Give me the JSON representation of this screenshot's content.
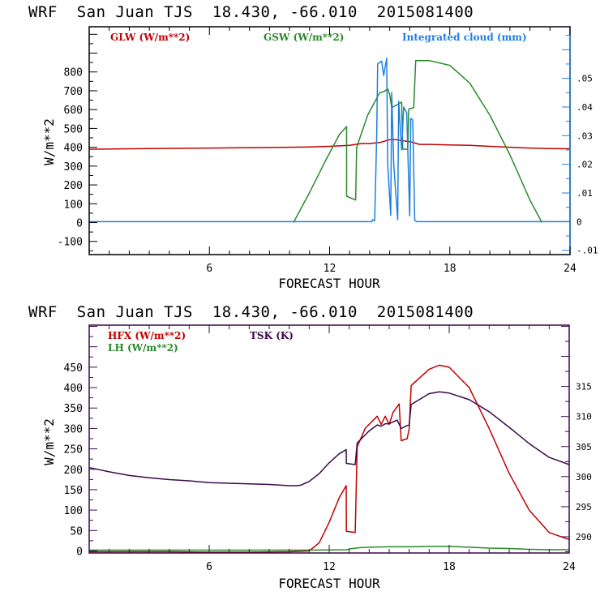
{
  "chart_data": [
    {
      "type": "line",
      "title": "WRF  San Juan TJS  18.430, -66.010  2015081400",
      "xlabel": "FORECAST HOUR",
      "ylabel": "W/m**2",
      "xlim": [
        0,
        24
      ],
      "ylim": [
        -170,
        1040
      ],
      "y2lim": [
        -0.0115,
        0.068
      ],
      "xticks": [
        6,
        12,
        18,
        24
      ],
      "yticks": [
        -100,
        0,
        100,
        200,
        300,
        400,
        500,
        600,
        700,
        800
      ],
      "ytick_labels": [
        "-100",
        "0",
        "100",
        "200",
        "300",
        "400",
        "500",
        "600",
        "700",
        "800"
      ],
      "y2ticks": [
        -0.01,
        0,
        0.01,
        0.02,
        0.03,
        0.04,
        0.05
      ],
      "y2tick_labels": [
        "-.01",
        "0",
        ".01",
        ".02",
        ".03",
        ".04",
        ".05"
      ],
      "frame_color": "#000000",
      "right_axis_color": "#1e7fe0",
      "series": [
        {
          "name": "GLW (W/m**2)",
          "axis": "left",
          "color": "#c00000",
          "x": [
            0,
            2,
            4,
            6,
            8,
            10,
            11,
            12,
            13,
            13.6,
            14,
            14.5,
            15,
            15.3,
            16,
            16.5,
            17,
            18,
            19,
            20,
            21,
            22,
            23,
            24
          ],
          "y": [
            390,
            392,
            394,
            396,
            398,
            400,
            402,
            405,
            410,
            420,
            420,
            425,
            440,
            440,
            430,
            415,
            415,
            412,
            410,
            405,
            400,
            396,
            393,
            392
          ]
        },
        {
          "name": "GSW (W/m**2)",
          "axis": "left",
          "color": "#2a8a2a",
          "x": [
            10.2,
            11,
            11.8,
            12.5,
            12.85,
            12.85,
            13.3,
            13.35,
            13.9,
            14.5,
            14.7,
            14.9,
            15,
            15.1,
            15.6,
            15.65,
            15.9,
            15.95,
            16,
            16.2,
            16.3,
            17,
            18,
            19,
            20,
            21,
            22,
            22.6
          ],
          "y": [
            0,
            160,
            330,
            470,
            510,
            140,
            120,
            400,
            570,
            690,
            695,
            710,
            680,
            610,
            640,
            390,
            390,
            600,
            605,
            610,
            860,
            860,
            835,
            740,
            570,
            360,
            120,
            0
          ]
        },
        {
          "name": "Integrated cloud (mm)",
          "axis": "right",
          "color": "#1e7fe0",
          "x": [
            0,
            14.1,
            14.15,
            14.25,
            14.35,
            14.4,
            14.6,
            14.7,
            14.85,
            14.9,
            15.05,
            15.1,
            15.2,
            15.4,
            15.45,
            15.6,
            15.7,
            15.85,
            16,
            16.05,
            16.15,
            16.25,
            16.35,
            16.5,
            24
          ],
          "y": [
            0,
            0,
            0.0007,
            0.0003,
            0.03,
            0.055,
            0.056,
            0.051,
            0.057,
            0.02,
            0.0022,
            0.045,
            0.02,
            0.0007,
            0.042,
            0.025,
            0.04,
            0.038,
            0.002,
            0.036,
            0.0355,
            0.0005,
            0,
            0,
            0
          ]
        }
      ],
      "legend": [
        "GLW (W/m**2)",
        "GSW (W/m**2)",
        "Integrated cloud (mm)"
      ],
      "legend_placement": "top"
    },
    {
      "type": "line",
      "title": "WRF  San Juan TJS  18.430, -66.010  2015081400",
      "xlabel": "FORECAST HOUR",
      "ylabel": "W/m**2",
      "xlim": [
        0,
        24
      ],
      "ylim": [
        -5,
        553
      ],
      "y2lim": [
        287.3,
        325.2
      ],
      "xticks": [
        6,
        12,
        18,
        24
      ],
      "yticks": [
        0,
        50,
        100,
        150,
        200,
        250,
        300,
        350,
        400,
        450
      ],
      "ytick_labels": [
        "0",
        "50",
        "100",
        "150",
        "200",
        "250",
        "300",
        "350",
        "400",
        "450"
      ],
      "y2ticks": [
        290,
        295,
        300,
        305,
        310,
        315
      ],
      "y2tick_labels": [
        "290",
        "295",
        "300",
        "305",
        "310",
        "315"
      ],
      "frame_color": "#3a0a4a",
      "series": [
        {
          "name": "HFX (W/m**2)",
          "axis": "left",
          "color": "#c00000",
          "x": [
            0,
            4,
            6,
            8,
            10,
            11,
            11.5,
            12,
            12.5,
            12.85,
            12.86,
            13.3,
            13.4,
            13.8,
            14.4,
            14.6,
            14.8,
            15.0,
            15.2,
            15.5,
            15.6,
            15.9,
            16,
            16.1,
            17,
            17.5,
            18,
            19,
            20,
            21,
            22,
            23,
            24
          ],
          "y": [
            -2,
            -2,
            -3,
            -3,
            -2,
            0,
            20,
            70,
            130,
            160,
            48,
            45,
            255,
            300,
            330,
            310,
            330,
            310,
            340,
            360,
            270,
            275,
            300,
            405,
            445,
            455,
            450,
            400,
            300,
            190,
            100,
            45,
            28
          ]
        },
        {
          "name": "LH (W/m**2)",
          "axis": "left",
          "color": "#2a8a2a",
          "x": [
            0,
            6,
            11,
            12.9,
            13,
            13.5,
            14,
            15,
            16,
            17,
            18,
            19,
            20,
            21,
            22,
            23,
            24
          ],
          "y": [
            2,
            2,
            2,
            3,
            5,
            8,
            9,
            10,
            10,
            11,
            11,
            9,
            7,
            6,
            4,
            3,
            3
          ]
        },
        {
          "name": "TSK (K)",
          "axis": "right",
          "color": "#3a0a4a",
          "x": [
            0,
            1,
            2,
            3,
            4,
            5,
            6,
            7,
            8,
            9,
            10,
            10.4,
            10.6,
            11,
            11.5,
            12,
            12.5,
            12.85,
            12.86,
            13.3,
            13.4,
            14,
            14.4,
            14.6,
            14.8,
            15,
            15.4,
            15.6,
            15.9,
            16,
            16.1,
            17,
            17.5,
            18,
            19,
            20,
            21,
            22,
            23,
            24
          ],
          "y": [
            301.5,
            300.8,
            300.2,
            299.8,
            299.5,
            299.3,
            299.0,
            298.9,
            298.8,
            298.7,
            298.5,
            298.5,
            298.6,
            299.2,
            300.5,
            302.3,
            303.8,
            304.5,
            302.2,
            302.0,
            305.6,
            307.6,
            308.6,
            308.4,
            308.8,
            308.8,
            309.4,
            308.0,
            308.5,
            308.6,
            312.0,
            313.8,
            314.1,
            313.9,
            312.8,
            310.8,
            308.2,
            305.5,
            303.2,
            302.0
          ]
        }
      ],
      "legend": [
        "HFX (W/m**2)",
        "LH (W/m**2)",
        "TSK (K)"
      ],
      "legend_placement": "top-left"
    }
  ]
}
